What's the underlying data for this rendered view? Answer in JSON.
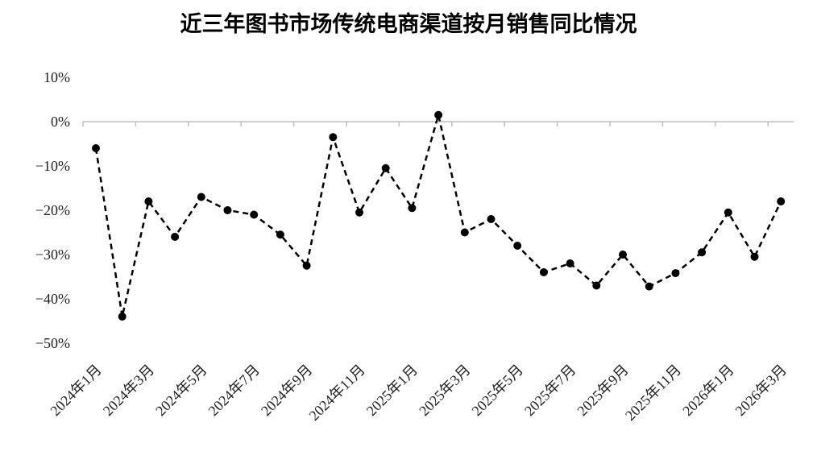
{
  "chart_data": {
    "type": "line",
    "title": "近三年图书市场传统电商渠道按月销售同比情况",
    "xlabel": "",
    "ylabel": "",
    "ylim": [
      -50,
      10
    ],
    "yticks": [
      10,
      0,
      -10,
      -20,
      -30,
      -40,
      -50
    ],
    "ytick_labels": [
      "10%",
      "0%",
      "−10%",
      "−20%",
      "−30%",
      "−40%",
      "−50%"
    ],
    "x": [
      "2024年1月",
      "2024年2月",
      "2024年3月",
      "2024年4月",
      "2024年5月",
      "2024年6月",
      "2024年7月",
      "2024年8月",
      "2024年9月",
      "2024年10月",
      "2024年11月",
      "2024年12月",
      "2025年1月",
      "2025年2月",
      "2025年3月",
      "2025年4月",
      "2025年5月",
      "2025年6月",
      "2025年7月",
      "2025年8月",
      "2025年9月",
      "2025年10月",
      "2025年11月",
      "2025年12月",
      "2026年1月",
      "2026年2月",
      "2026年3月"
    ],
    "xtick_labels": [
      "2024年1月",
      "2024年3月",
      "2024年5月",
      "2024年7月",
      "2024年9月",
      "2024年11月",
      "2025年1月",
      "2025年3月",
      "2025年5月",
      "2025年7月",
      "2025年9月",
      "2025年11月",
      "2026年1月",
      "2026年3月"
    ],
    "series": [
      {
        "values": [
          -6,
          -44,
          -18,
          -26,
          -17,
          -20,
          -21,
          -25.5,
          -32.5,
          -3.5,
          -20.5,
          -10.5,
          -19.5,
          1.5,
          -25,
          -22,
          -28,
          -34,
          -32,
          -37,
          -30,
          -37.2,
          -34.2,
          -29.5,
          -20.5,
          -30.5,
          -18
        ],
        "line_style": "dashed",
        "marker": "circle",
        "color": "#000000"
      }
    ],
    "grid": false,
    "legend": "none"
  }
}
